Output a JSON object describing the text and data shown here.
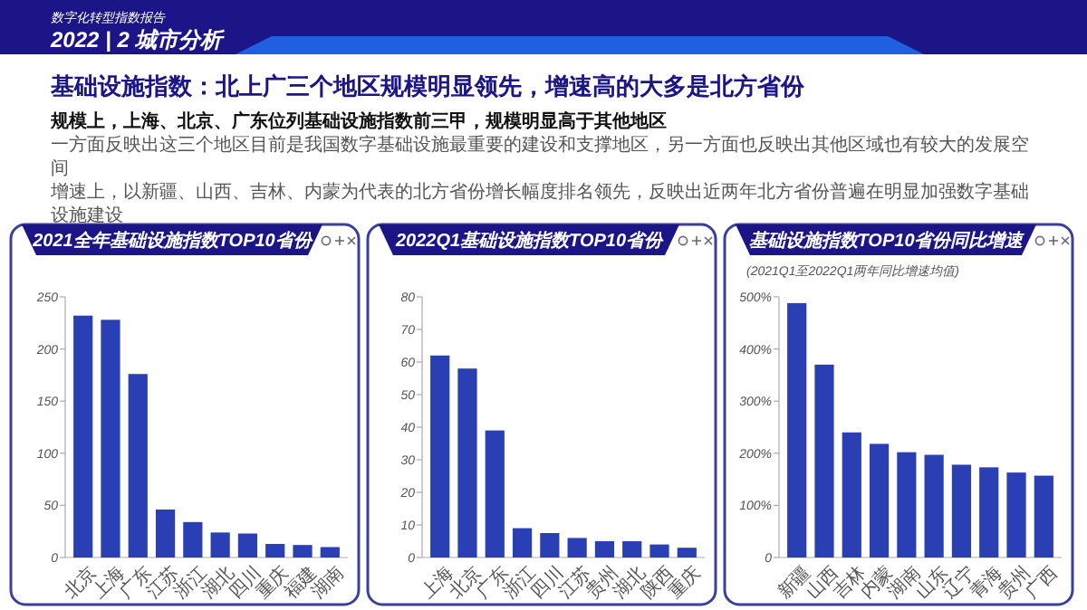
{
  "chart_data": [
    {
      "type": "other",
      "title": "基础设施指数：北上广三个地区规模明显领先，增速高的大多是北方省份",
      "subtitle": "数字化转型指数报告 2022 | 2 城市分析",
      "annotations": [
        "规模上，上海、北京、广东位列基础设施指数前三甲，规模明显高于其他地区",
        "一方面反映出这三个地区目前是我国数字基础设施最重要的建设和支撑地区，另一方面也反映出其他区域也有较大的发展空间",
        "增速上，以新疆、山西、吉林、内蒙为代表的北方省份增长幅度排名领先，反映出近两年北方省份普遍在明显加强数字基础设施建设"
      ]
    },
    {
      "type": "bar",
      "title": "2021全年基础设施指数TOP10省份",
      "categories": [
        "北京",
        "上海",
        "广东",
        "江苏",
        "浙江",
        "湖北",
        "四川",
        "重庆",
        "福建",
        "湖南"
      ],
      "values": [
        232,
        228,
        176,
        46,
        34,
        24,
        23,
        13,
        12,
        10
      ],
      "color": "#2b3fb5",
      "ylim": [
        0,
        250
      ],
      "yticks": [
        0,
        50,
        100,
        150,
        200,
        250
      ],
      "grid": false
    },
    {
      "type": "bar",
      "title": "2022Q1基础设施指数TOP10省份",
      "categories": [
        "上海",
        "北京",
        "广东",
        "浙江",
        "四川",
        "江苏",
        "贵州",
        "湖北",
        "陕西",
        "重庆"
      ],
      "values": [
        62,
        58,
        39,
        9,
        7.5,
        6,
        5,
        5,
        4,
        3
      ],
      "color": "#2b3fb5",
      "ylim": [
        0,
        80
      ],
      "yticks": [
        0,
        10,
        20,
        30,
        40,
        50,
        60,
        70,
        80
      ],
      "grid": false
    },
    {
      "type": "bar",
      "title": "基础设施指数TOP10省份同比增速",
      "subtitle": "(2021Q1至2022Q1两年同比增速均值)",
      "categories": [
        "新疆",
        "山西",
        "吉林",
        "内蒙",
        "湖南",
        "山东",
        "辽宁",
        "青海",
        "贵州",
        "广西"
      ],
      "values": [
        488,
        370,
        240,
        218,
        202,
        197,
        178,
        173,
        163,
        157
      ],
      "color": "#2b3fb5",
      "ylim": [
        0,
        500
      ],
      "yticks": [
        0,
        {
          "value": 100,
          "label": "100%"
        },
        {
          "value": 200,
          "label": "200%"
        },
        {
          "value": 300,
          "label": "300%"
        },
        {
          "value": 400,
          "label": "400%"
        },
        {
          "value": 500,
          "label": "500%"
        }
      ],
      "grid": false
    }
  ]
}
